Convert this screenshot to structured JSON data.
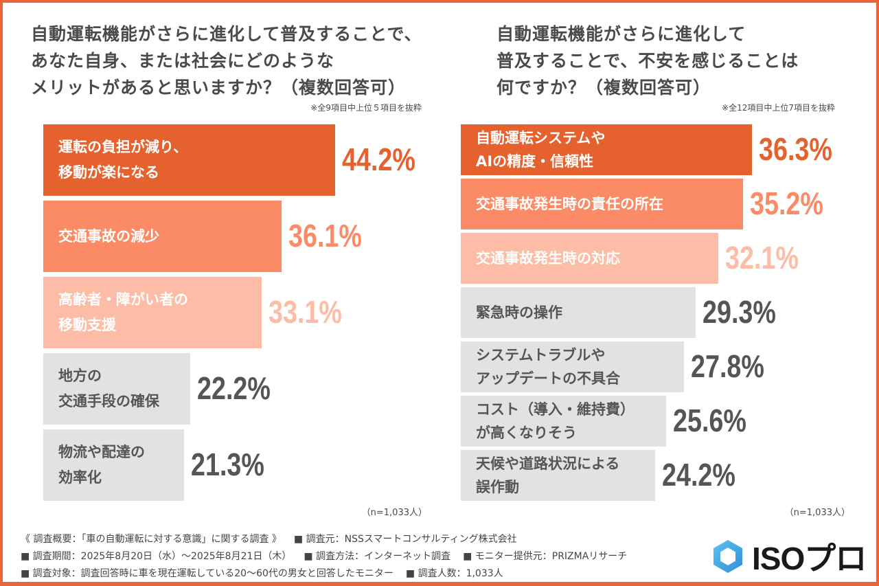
{
  "colors": {
    "border": "#e8643a",
    "rank1": "#e5622f",
    "rank2": "#fa8b66",
    "rank3": "#fdbca5",
    "gray": "#e2e2e2",
    "gray_text": "#555555",
    "bar_text_light": "#ffffff"
  },
  "left_panel": {
    "title_lines": [
      "自動運転機能がさらに進化して普及することで、",
      "あなた自身、または社会にどのような",
      "メリットがあると思いますか？（複数回答可）"
    ],
    "note": "※全9項目中上位５項目を抜粋",
    "sample": "（n=1,033人）"
  },
  "right_panel": {
    "title_lines": [
      "自動運転機能がさらに進化して",
      "普及することで、不安を感じることは",
      "何ですか？（複数回答可）"
    ],
    "note": "※全12項目中上位7項目を抜粋",
    "sample": "（n=1,033人）"
  },
  "chart_data": [
    {
      "type": "bar",
      "orientation": "horizontal",
      "title": "自動運転機能がさらに進化して普及することで、あなた自身、または社会にどのようなメリットがあると思いますか？（複数回答可）",
      "unit": "%",
      "categories": [
        [
          "運転の負担が減り、",
          "移動が楽になる"
        ],
        [
          "交通事故の減少"
        ],
        [
          "高齢者・障がい者の",
          "移動支援"
        ],
        [
          "地方の",
          "交通手段の確保"
        ],
        [
          "物流や配達の",
          "効率化"
        ]
      ],
      "values": [
        44.2,
        36.1,
        33.1,
        22.2,
        21.3
      ],
      "labels": [
        "44.2%",
        "36.1%",
        "33.1%",
        "22.2%",
        "21.3%"
      ]
    },
    {
      "type": "bar",
      "orientation": "horizontal",
      "title": "自動運転機能がさらに進化して普及することで、不安を感じることは何ですか？（複数回答可）",
      "unit": "%",
      "categories": [
        [
          "自動運転システムや",
          "AIの精度・信頼性"
        ],
        [
          "交通事故発生時の責任の所在"
        ],
        [
          "交通事故発生時の対応"
        ],
        [
          "緊急時の操作"
        ],
        [
          "システムトラブルや",
          "アップデートの不具合"
        ],
        [
          "コスト（導入・維持費）",
          "が高くなりそう"
        ],
        [
          "天候や道路状況による",
          "誤作動"
        ]
      ],
      "values": [
        36.3,
        35.2,
        32.1,
        29.3,
        27.8,
        25.6,
        24.2
      ],
      "labels": [
        "36.3%",
        "35.2%",
        "32.1%",
        "29.3%",
        "27.8%",
        "25.6%",
        "24.2%"
      ]
    }
  ],
  "footer": {
    "rows": [
      [
        "《 調査概要：「車の自動運転に対する意識」に関する調査 》",
        "■ 調査元：NSSスマートコンサルティング株式会社"
      ],
      [
        "■ 調査期間：2025年8月20日（水）〜2025年8月21日（木）",
        "■ 調査方法：インターネット調査",
        "■ モニター提供元：PRIZMAリサーチ"
      ],
      [
        "■ 調査対象：調査回答時に車を現在運転している20〜60代の男女と回答したモニター",
        "■ 調査人数：1,033人"
      ]
    ]
  },
  "logo": {
    "text": "ISOプロ",
    "icon": "hexagon-logo-icon"
  }
}
